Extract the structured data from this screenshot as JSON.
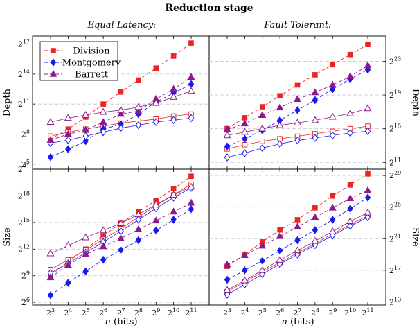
{
  "figure": {
    "title": "Reduction stage",
    "col_titles": [
      "Equal Latency:",
      "Fault Tolerant:"
    ],
    "xlabel": "n (bits)",
    "ylabels": {
      "depth": "Depth",
      "size": "Size"
    }
  },
  "legend": {
    "placement": "top-left of top-left panel",
    "entries": [
      {
        "name": "Division",
        "color": "#ee2222",
        "marker": "square"
      },
      {
        "name": "Montgomery",
        "color": "#1a1aee",
        "marker": "diamond"
      },
      {
        "name": "Barrett",
        "color": "#8b1a8b",
        "marker": "triangle"
      }
    ]
  },
  "chart_data": [
    {
      "type": "line",
      "panel": "equal-latency-depth",
      "y_scale": "log2",
      "x": [
        3,
        4,
        5,
        6,
        7,
        8,
        9,
        10,
        11
      ],
      "x_ticks": [
        "2^3",
        "2^4",
        "2^5",
        "2^6",
        "2^7",
        "2^8",
        "2^9",
        "2^10",
        "2^11"
      ],
      "y_ticks": [
        "2^5",
        "2^8",
        "2^11",
        "2^14",
        "2^17"
      ],
      "ylim_log2": [
        4.5,
        17.8
      ],
      "series": [
        {
          "name": "Division",
          "style": "dashed-filled",
          "color": "#ee2222",
          "marker": "square",
          "log2_values": [
            7.5,
            8.5,
            9.7,
            11.0,
            12.2,
            13.4,
            14.6,
            15.8,
            17.1
          ]
        },
        {
          "name": "Division",
          "style": "solid-open",
          "color": "#ee2222",
          "marker": "square",
          "log2_values": [
            7.8,
            8.2,
            8.5,
            8.8,
            9.1,
            9.3,
            9.5,
            9.8,
            10.0
          ]
        },
        {
          "name": "Montgomery",
          "style": "dashed-filled",
          "color": "#1a1aee",
          "marker": "diamond",
          "log2_values": [
            5.7,
            6.5,
            7.3,
            8.5,
            9.0,
            10.0,
            11.2,
            12.1,
            13.0
          ]
        },
        {
          "name": "Montgomery",
          "style": "solid-open",
          "color": "#1a1aee",
          "marker": "diamond",
          "log2_values": [
            7.1,
            7.4,
            7.8,
            8.2,
            8.6,
            8.9,
            9.2,
            9.4,
            9.6
          ]
        },
        {
          "name": "Barrett",
          "style": "dashed-filled",
          "color": "#8b1a8b",
          "marker": "triangle",
          "log2_values": [
            7.4,
            8.0,
            8.4,
            9.2,
            10.0,
            10.3,
            11.5,
            12.5,
            13.7
          ]
        },
        {
          "name": "Barrett",
          "style": "solid-open",
          "color": "#8b1a8b",
          "marker": "triangle",
          "log2_values": [
            9.2,
            9.6,
            9.9,
            10.2,
            10.4,
            10.7,
            11.1,
            11.7,
            12.3
          ]
        }
      ]
    },
    {
      "type": "line",
      "panel": "fault-tolerant-depth",
      "y_scale": "log2",
      "x": [
        3,
        4,
        5,
        6,
        7,
        8,
        9,
        10,
        11
      ],
      "x_ticks": [
        "2^3",
        "2^4",
        "2^5",
        "2^6",
        "2^7",
        "2^8",
        "2^9",
        "2^10",
        "2^11"
      ],
      "y_ticks": [
        "2^11",
        "2^15",
        "2^19",
        "2^23"
      ],
      "ylim_log2": [
        10.2,
        26.0
      ],
      "series": [
        {
          "name": "Division",
          "style": "dashed-filled",
          "color": "#ee2222",
          "marker": "square",
          "log2_values": [
            15.0,
            16.3,
            17.6,
            18.9,
            20.2,
            21.4,
            22.6,
            23.8,
            25.0
          ]
        },
        {
          "name": "Division",
          "style": "solid-open",
          "color": "#ee2222",
          "marker": "square",
          "log2_values": [
            12.6,
            13.1,
            13.5,
            13.8,
            14.1,
            14.4,
            14.7,
            15.0,
            15.3
          ]
        },
        {
          "name": "Montgomery",
          "style": "dashed-filled",
          "color": "#1a1aee",
          "marker": "diamond",
          "log2_values": [
            12.9,
            13.8,
            14.8,
            16.0,
            17.2,
            18.4,
            19.7,
            20.9,
            22.0
          ]
        },
        {
          "name": "Montgomery",
          "style": "solid-open",
          "color": "#1a1aee",
          "marker": "diamond",
          "log2_values": [
            11.6,
            12.1,
            12.7,
            13.2,
            13.6,
            13.9,
            14.2,
            14.5,
            14.7
          ]
        },
        {
          "name": "Barrett",
          "style": "dashed-filled",
          "color": "#8b1a8b",
          "marker": "triangle",
          "log2_values": [
            14.9,
            15.6,
            16.6,
            17.5,
            18.5,
            19.3,
            20.2,
            21.2,
            22.5
          ]
        },
        {
          "name": "Barrett",
          "style": "solid-open",
          "color": "#8b1a8b",
          "marker": "triangle",
          "log2_values": [
            14.2,
            14.6,
            15.0,
            15.4,
            15.7,
            16.0,
            16.4,
            16.8,
            17.4
          ]
        }
      ]
    },
    {
      "type": "line",
      "panel": "equal-latency-size",
      "y_scale": "log2",
      "x": [
        3,
        4,
        5,
        6,
        7,
        8,
        9,
        10,
        11
      ],
      "x_ticks": [
        "2^3",
        "2^4",
        "2^5",
        "2^6",
        "2^7",
        "2^8",
        "2^9",
        "2^10",
        "2^11"
      ],
      "y_ticks": [
        "2^6",
        "2^9",
        "2^12",
        "2^15",
        "2^18",
        "2^21"
      ],
      "ylim_log2": [
        5.7,
        21.0
      ],
      "series": [
        {
          "name": "Division",
          "style": "dashed-filled",
          "color": "#ee2222",
          "marker": "square",
          "log2_values": [
            9.0,
            10.6,
            12.0,
            13.5,
            14.9,
            16.2,
            17.5,
            18.8,
            20.2
          ]
        },
        {
          "name": "Division",
          "style": "solid-open",
          "color": "#ee2222",
          "marker": "square",
          "log2_values": [
            9.7,
            10.8,
            11.9,
            13.1,
            14.3,
            15.6,
            16.9,
            18.1,
            19.3
          ]
        },
        {
          "name": "Montgomery",
          "style": "dashed-filled",
          "color": "#1a1aee",
          "marker": "diamond",
          "log2_values": [
            6.8,
            8.2,
            9.5,
            10.8,
            11.9,
            13.0,
            14.1,
            15.3,
            16.5
          ]
        },
        {
          "name": "Montgomery",
          "style": "solid-open",
          "color": "#1a1aee",
          "marker": "diamond",
          "log2_values": [
            9.3,
            10.4,
            11.6,
            12.8,
            14.0,
            15.3,
            16.6,
            17.8,
            18.9
          ]
        },
        {
          "name": "Barrett",
          "style": "dashed-filled",
          "color": "#8b1a8b",
          "marker": "triangle",
          "log2_values": [
            8.8,
            10.2,
            11.4,
            12.3,
            13.2,
            14.2,
            15.2,
            16.2,
            17.2
          ]
        },
        {
          "name": "Barrett",
          "style": "solid-open",
          "color": "#8b1a8b",
          "marker": "triangle",
          "log2_values": [
            11.5,
            12.4,
            13.3,
            14.1,
            14.9,
            15.9,
            17.0,
            18.1,
            19.0
          ]
        }
      ]
    },
    {
      "type": "line",
      "panel": "fault-tolerant-size",
      "y_scale": "log2",
      "x": [
        3,
        4,
        5,
        6,
        7,
        8,
        9,
        10,
        11
      ],
      "x_ticks": [
        "2^3",
        "2^4",
        "2^5",
        "2^6",
        "2^7",
        "2^8",
        "2^9",
        "2^10",
        "2^11"
      ],
      "y_ticks": [
        "2^13",
        "2^17",
        "2^21",
        "2^25",
        "2^29"
      ],
      "ylim_log2": [
        12.6,
        29.8
      ],
      "series": [
        {
          "name": "Division",
          "style": "dashed-filled",
          "color": "#ee2222",
          "marker": "square",
          "log2_values": [
            17.5,
            19.0,
            20.6,
            22.1,
            23.4,
            24.9,
            26.4,
            27.8,
            29.2
          ]
        },
        {
          "name": "Division",
          "style": "solid-open",
          "color": "#ee2222",
          "marker": "square",
          "log2_values": [
            14.3,
            15.5,
            16.8,
            18.0,
            19.2,
            20.4,
            21.6,
            22.8,
            23.9
          ]
        },
        {
          "name": "Montgomery",
          "style": "dashed-filled",
          "color": "#1a1aee",
          "marker": "diamond",
          "log2_values": [
            15.8,
            17.0,
            18.2,
            19.5,
            20.8,
            22.1,
            23.4,
            24.8,
            26.2
          ]
        },
        {
          "name": "Montgomery",
          "style": "solid-open",
          "color": "#1a1aee",
          "marker": "diamond",
          "log2_values": [
            13.9,
            15.2,
            16.5,
            17.8,
            19.0,
            20.2,
            21.4,
            22.6,
            23.7
          ]
        },
        {
          "name": "Barrett",
          "style": "dashed-filled",
          "color": "#8b1a8b",
          "marker": "triangle",
          "log2_values": [
            17.7,
            18.9,
            20.1,
            21.3,
            22.5,
            23.7,
            24.9,
            26.1,
            27.1
          ]
        },
        {
          "name": "Barrett",
          "style": "solid-open",
          "color": "#8b1a8b",
          "marker": "triangle",
          "log2_values": [
            14.5,
            15.7,
            17.0,
            18.3,
            19.5,
            20.7,
            21.9,
            23.2,
            24.3
          ]
        }
      ]
    }
  ]
}
